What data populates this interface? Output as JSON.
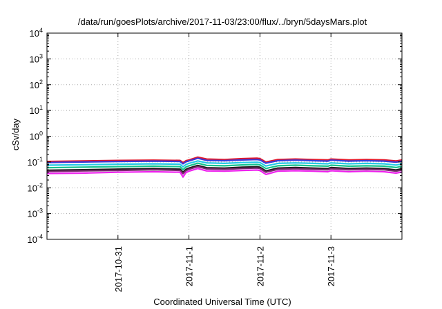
{
  "chart_data": {
    "type": "line",
    "title": "/data/run/goesPlots/archive/2017-11-03/23:00/flux/../bryn/5daysMars.plot",
    "xlabel": "Coordinated Universal Time (UTC)",
    "ylabel": "cSv/day",
    "yscale": "log",
    "grid": true,
    "ylim": [
      0.0001,
      10000
    ],
    "y_ticks": [
      {
        "base": "10",
        "exp": "-4",
        "value": 0.0001
      },
      {
        "base": "10",
        "exp": "-3",
        "value": 0.001
      },
      {
        "base": "10",
        "exp": "-2",
        "value": 0.01
      },
      {
        "base": "10",
        "exp": "-1",
        "value": 0.1
      },
      {
        "base": "10",
        "exp": "0",
        "value": 1
      },
      {
        "base": "10",
        "exp": "1",
        "value": 10
      },
      {
        "base": "10",
        "exp": "2",
        "value": 100
      },
      {
        "base": "10",
        "exp": "3",
        "value": 1000
      },
      {
        "base": "10",
        "exp": "4",
        "value": 10000
      }
    ],
    "xlim": [
      "2017-10-30 00:00",
      "2017-11-04 00:00"
    ],
    "x_ticks": [
      "2017-10-31",
      "2017-11-1",
      "2017-11-2",
      "2017-11-3"
    ],
    "x": [
      "2017-10-30 00:00",
      "2017-10-30 12:00",
      "2017-10-31 00:00",
      "2017-10-31 12:00",
      "2017-10-31 21:00",
      "2017-10-31 22:00",
      "2017-10-31 23:00",
      "2017-11-01 00:00",
      "2017-11-01 03:00",
      "2017-11-01 06:00",
      "2017-11-01 12:00",
      "2017-11-01 18:00",
      "2017-11-01 23:00",
      "2017-11-02 00:00",
      "2017-11-02 02:00",
      "2017-11-02 06:00",
      "2017-11-02 12:00",
      "2017-11-02 18:00",
      "2017-11-02 23:00",
      "2017-11-03 00:00",
      "2017-11-03 06:00",
      "2017-11-03 12:00",
      "2017-11-03 18:00",
      "2017-11-03 22:00",
      "2017-11-04 00:00"
    ],
    "series": [
      {
        "color": "#e0182d",
        "values": [
          0.105,
          0.11,
          0.115,
          0.118,
          0.115,
          0.095,
          0.112,
          0.12,
          0.155,
          0.13,
          0.125,
          0.135,
          0.14,
          0.135,
          0.1,
          0.125,
          0.13,
          0.125,
          0.12,
          0.13,
          0.12,
          0.125,
          0.12,
          0.11,
          0.12
        ]
      },
      {
        "color": "#3a3ad8",
        "values": [
          0.095,
          0.1,
          0.105,
          0.108,
          0.105,
          0.085,
          0.102,
          0.11,
          0.14,
          0.115,
          0.112,
          0.12,
          0.125,
          0.12,
          0.09,
          0.112,
          0.118,
          0.112,
          0.108,
          0.118,
          0.108,
          0.112,
          0.108,
          0.098,
          0.108
        ]
      },
      {
        "color": "#23c9e6",
        "values": [
          0.075,
          0.078,
          0.082,
          0.085,
          0.082,
          0.065,
          0.08,
          0.088,
          0.11,
          0.092,
          0.088,
          0.095,
          0.098,
          0.095,
          0.07,
          0.088,
          0.092,
          0.088,
          0.085,
          0.092,
          0.085,
          0.088,
          0.085,
          0.076,
          0.084
        ]
      },
      {
        "color": "#14c38c",
        "values": [
          0.06,
          0.063,
          0.066,
          0.069,
          0.066,
          0.05,
          0.064,
          0.071,
          0.09,
          0.074,
          0.071,
          0.077,
          0.08,
          0.077,
          0.056,
          0.071,
          0.075,
          0.071,
          0.069,
          0.075,
          0.069,
          0.071,
          0.069,
          0.061,
          0.068
        ]
      },
      {
        "color": "#1e1e1e",
        "values": [
          0.048,
          0.05,
          0.053,
          0.056,
          0.053,
          0.04,
          0.052,
          0.058,
          0.074,
          0.06,
          0.058,
          0.063,
          0.065,
          0.063,
          0.045,
          0.058,
          0.061,
          0.058,
          0.056,
          0.061,
          0.056,
          0.058,
          0.056,
          0.049,
          0.055
        ]
      },
      {
        "color": "#7a2a6e",
        "values": [
          0.043,
          0.045,
          0.047,
          0.05,
          0.047,
          0.035,
          0.046,
          0.052,
          0.066,
          0.054,
          0.052,
          0.056,
          0.058,
          0.056,
          0.04,
          0.052,
          0.055,
          0.052,
          0.05,
          0.055,
          0.05,
          0.052,
          0.05,
          0.044,
          0.049
        ]
      },
      {
        "color": "#ee22ee",
        "values": [
          0.036,
          0.037,
          0.04,
          0.042,
          0.04,
          0.026,
          0.039,
          0.044,
          0.056,
          0.045,
          0.044,
          0.047,
          0.049,
          0.047,
          0.033,
          0.044,
          0.046,
          0.044,
          0.042,
          0.046,
          0.042,
          0.044,
          0.042,
          0.037,
          0.041
        ]
      }
    ]
  }
}
